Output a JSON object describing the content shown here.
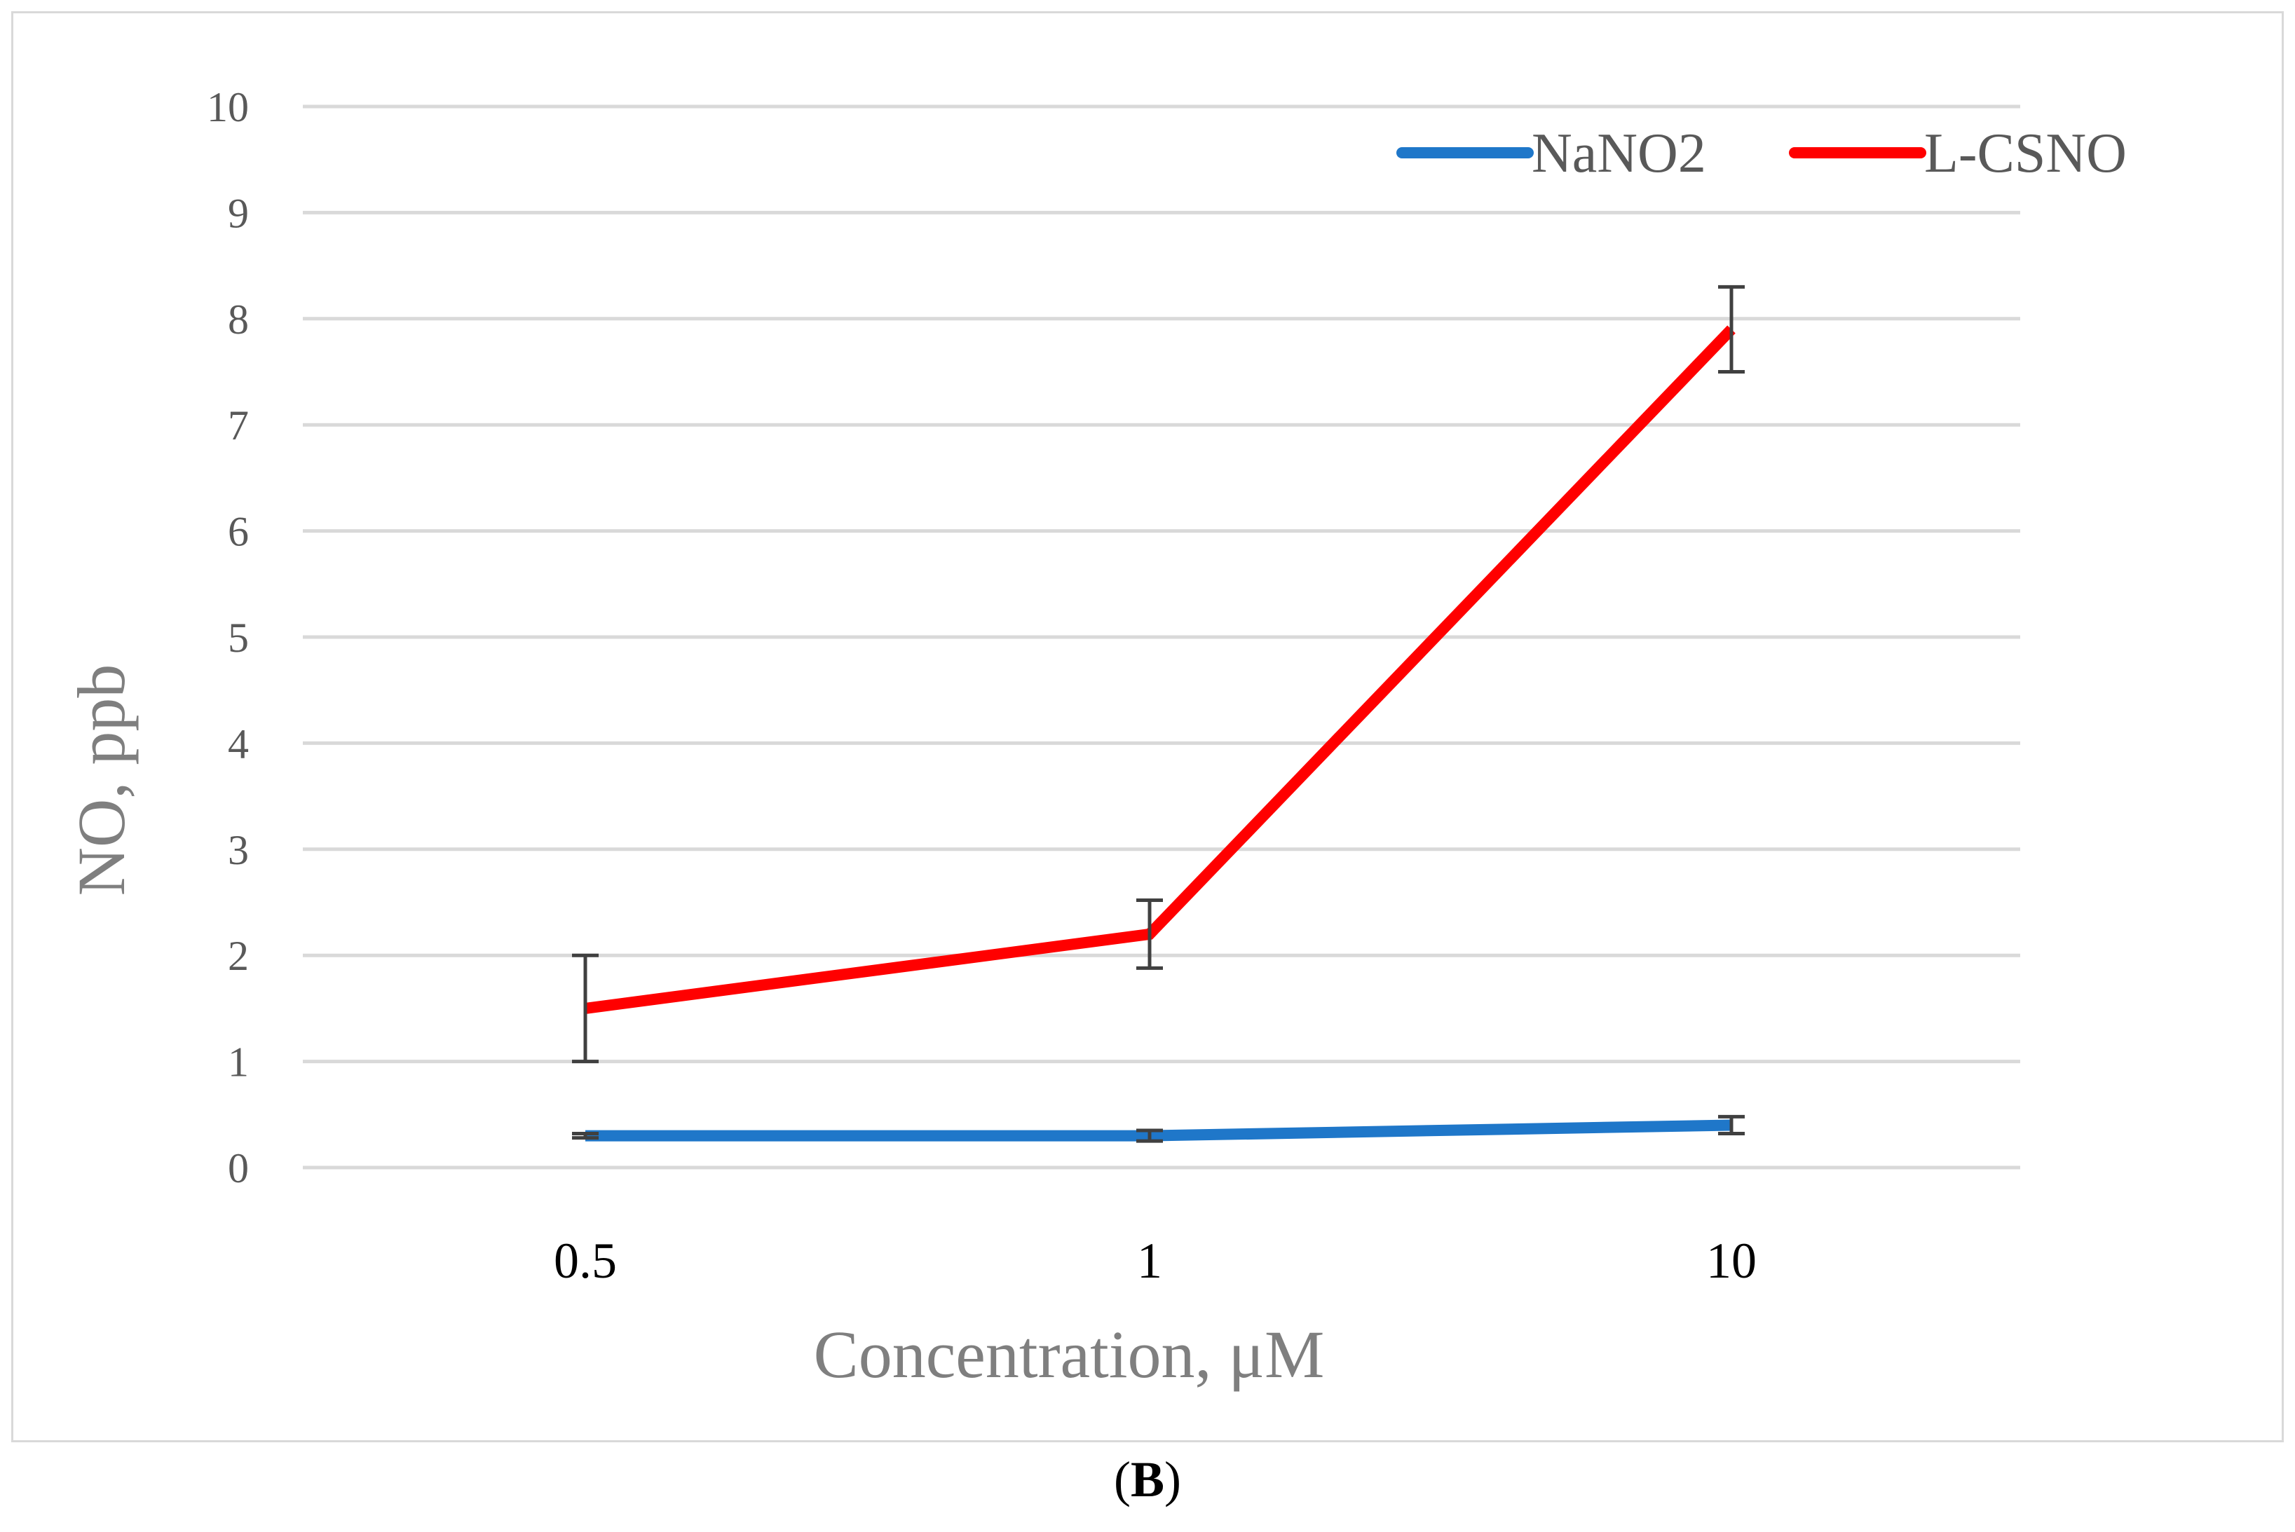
{
  "chart_data": {
    "type": "line",
    "categories": [
      "0.5",
      "1",
      "10"
    ],
    "series": [
      {
        "name": "NaNO2",
        "color": "#1f77c9",
        "values": [
          0.3,
          0.3,
          0.4
        ],
        "errors": [
          0.02,
          0.05,
          0.08
        ]
      },
      {
        "name": "L-CSNO",
        "color": "#ff0000",
        "values": [
          1.5,
          2.2,
          7.9
        ],
        "errors": [
          0.5,
          0.32,
          0.4
        ]
      }
    ],
    "xlabel": "Concentration, μM",
    "ylabel": "NO, ppb",
    "ylim": [
      0,
      10
    ],
    "yticks": [
      "0",
      "1",
      "2",
      "3",
      "4",
      "5",
      "6",
      "7",
      "8",
      "9",
      "10"
    ],
    "grid": true,
    "legend_position": "top-right",
    "gridline_color": "#d9d9d9",
    "errorbar_color": "#404040"
  },
  "panel_label": {
    "open": "(",
    "letter": "B",
    "close": ")"
  }
}
